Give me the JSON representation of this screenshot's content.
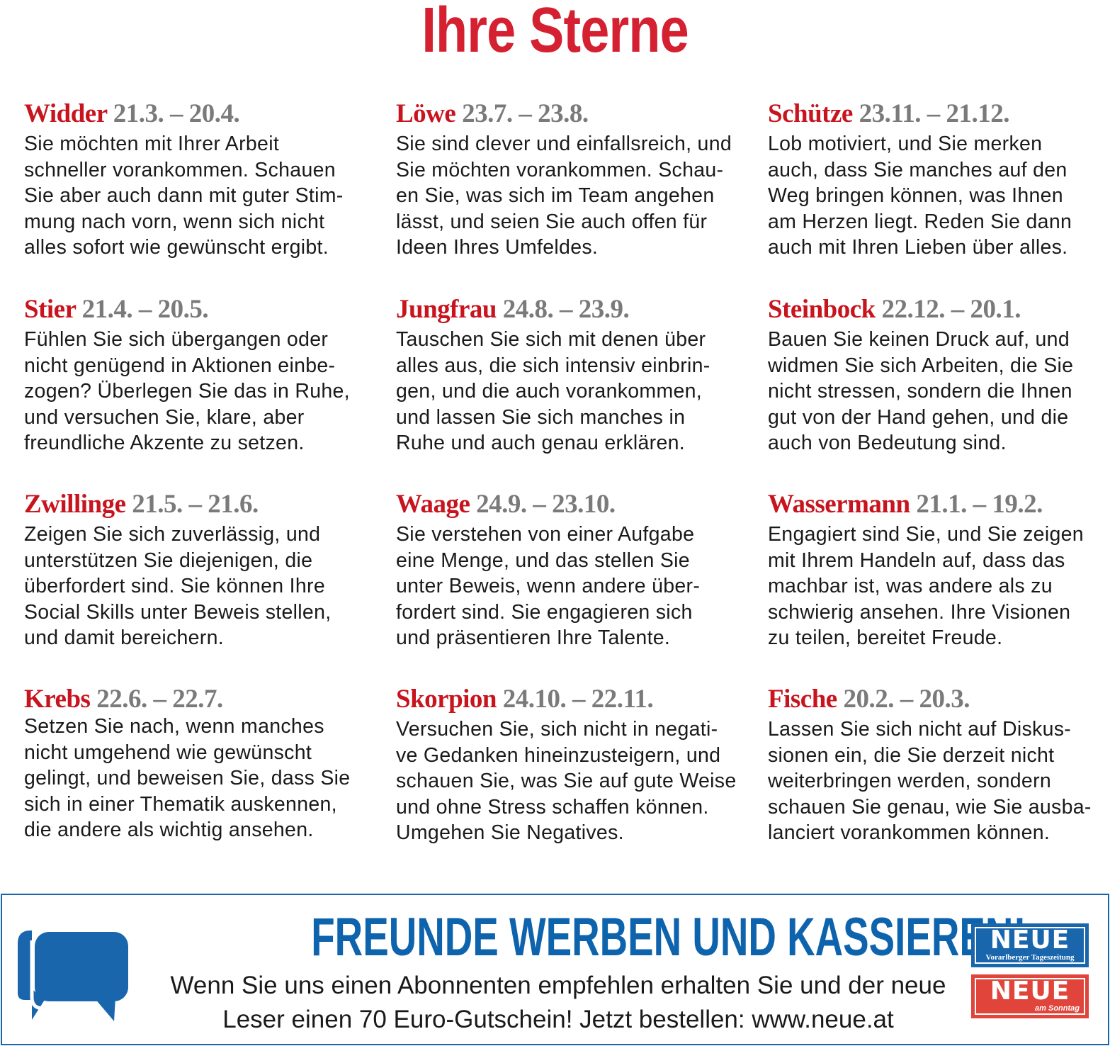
{
  "title": "Ihre Sterne",
  "signs": [
    {
      "name": "Widder",
      "date": "21.3. – 20.4.",
      "text": "Sie möchten mit Ihrer Arbeit\nschneller vorankommen. Schauen\nSie aber auch dann mit guter Stim-\nmung nach vorn, wenn sich nicht\nalles sofort wie gewünscht ergibt."
    },
    {
      "name": "Stier",
      "date": "21.4. – 20.5.",
      "text": "Fühlen Sie sich übergangen oder\nnicht genügend in Aktionen einbe-\nzogen? Überlegen Sie das in Ruhe,\nund versuchen Sie, klare, aber\nfreundliche Akzente zu setzen."
    },
    {
      "name": "Zwillinge",
      "date": "21.5. – 21.6.",
      "text": "Zeigen Sie sich zuverlässig, und\nunterstützen Sie diejenigen, die\nüberfordert sind. Sie können Ihre\nSocial Skills unter Beweis stellen,\nund damit bereichern."
    },
    {
      "name": "Krebs",
      "date": "22.6. – 22.7.",
      "text": "Setzen Sie nach, wenn manches\nnicht umgehend wie gewünscht\ngelingt, und beweisen Sie, dass Sie\nsich in einer Thematik auskennen,\ndie andere als wichtig ansehen."
    },
    {
      "name": "Löwe",
      "date": "23.7. – 23.8.",
      "text": "Sie sind clever und einfallsreich, und\nSie möchten vorankommen. Schau-\nen Sie, was sich im Team angehen\nlässt, und seien Sie auch offen für\nIdeen Ihres Umfeldes."
    },
    {
      "name": "Jungfrau",
      "date": "24.8. – 23.9.",
      "text": "Tauschen Sie sich mit denen über\nalles aus, die sich intensiv einbrin-\ngen, und die auch vorankommen,\nund lassen Sie sich manches in\nRuhe und auch genau erklären."
    },
    {
      "name": "Waage",
      "date": "24.9. – 23.10.",
      "text": "Sie verstehen von einer Aufgabe\neine Menge, und das stellen Sie\nunter Beweis, wenn andere über-\nfordert sind. Sie engagieren sich\nund präsentieren Ihre Talente."
    },
    {
      "name": "Skorpion",
      "date": "24.10. – 22.11.",
      "text": "Versuchen Sie, sich nicht in negati-\nve Gedanken hineinzusteigern, und\nschauen Sie, was Sie auf gute Weise\nund ohne Stress schaffen können.\nUmgehen Sie Negatives."
    },
    {
      "name": "Schütze",
      "date": "23.11. – 21.12.",
      "text": "Lob motiviert, und Sie merken\nauch, dass Sie manches auf den\nWeg bringen können, was Ihnen\nam Herzen liegt. Reden Sie dann\nauch mit Ihren Lieben über alles."
    },
    {
      "name": "Steinbock",
      "date": "22.12. – 20.1.",
      "text": "Bauen Sie keinen Druck auf, und\nwidmen Sie sich Arbeiten, die Sie\nnicht stressen, sondern die Ihnen\ngut von der Hand gehen, und die\nauch von Bedeutung sind."
    },
    {
      "name": "Wassermann",
      "date": "21.1. – 19.2.",
      "text": "Engagiert sind Sie, und Sie zeigen\nmit Ihrem Handeln auf, dass das\nmachbar ist, was andere als zu\nschwierig ansehen. Ihre Visionen\nzu teilen, bereitet Freude."
    },
    {
      "name": "Fische",
      "date": "20.2. – 20.3.",
      "text": "Lassen Sie sich nicht auf Diskus-\nsionen ein, die Sie derzeit nicht\nweiterbringen werden, sondern\nschauen Sie genau, wie Sie ausba-\nlanciert vorankommen können."
    }
  ],
  "banner": {
    "headline": "FREUNDE WERBEN UND KASSIEREN!",
    "line1": "Wenn Sie uns einen Abonnenten empfehlen erhalten Sie und der neue",
    "line2": "Leser einen 70 Euro-Gutschein! Jetzt bestellen: www.neue.at",
    "icon": "chat-bubbles-icon",
    "logo1": {
      "main": "NEUE",
      "sub": "Vorarlberger Tageszeitung",
      "color": "#1a66ad"
    },
    "logo2": {
      "main": "NEUE",
      "sub": "am Sonntag",
      "color": "#e0443a"
    }
  },
  "colors": {
    "title": "#d42030",
    "sign_name": "#c8141e",
    "date": "#7a7a7a",
    "banner": "#0e63ad"
  }
}
